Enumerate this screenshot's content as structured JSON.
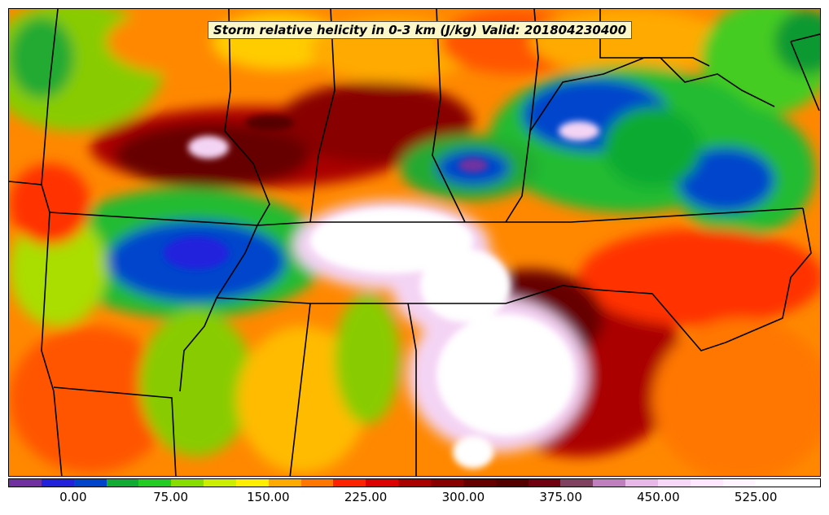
{
  "title": "Storm relative helicity in 0-3 km (J/kg) Valid: 201804230400",
  "colorbar": {
    "min": -50,
    "max": 575,
    "step": 25,
    "colors": [
      "#7030a0",
      "#2222dd",
      "#0044cc",
      "#11aa33",
      "#22cc22",
      "#88dd00",
      "#ccee00",
      "#ffee00",
      "#ffaa00",
      "#ff7700",
      "#ff2200",
      "#dd0000",
      "#aa0000",
      "#880000",
      "#660000",
      "#550000",
      "#700010",
      "#804060",
      "#c080c0",
      "#e8b8e8",
      "#f8d8f8",
      "#ffe8ff",
      "#fff4ff",
      "#ffffff",
      "#ffffff"
    ],
    "tick_labels": [
      "0.00",
      "75.00",
      "150.00",
      "225.00",
      "300.00",
      "375.00",
      "450.00",
      "525.00"
    ],
    "tick_values": [
      0,
      75,
      150,
      225,
      300,
      375,
      450,
      525
    ]
  }
}
